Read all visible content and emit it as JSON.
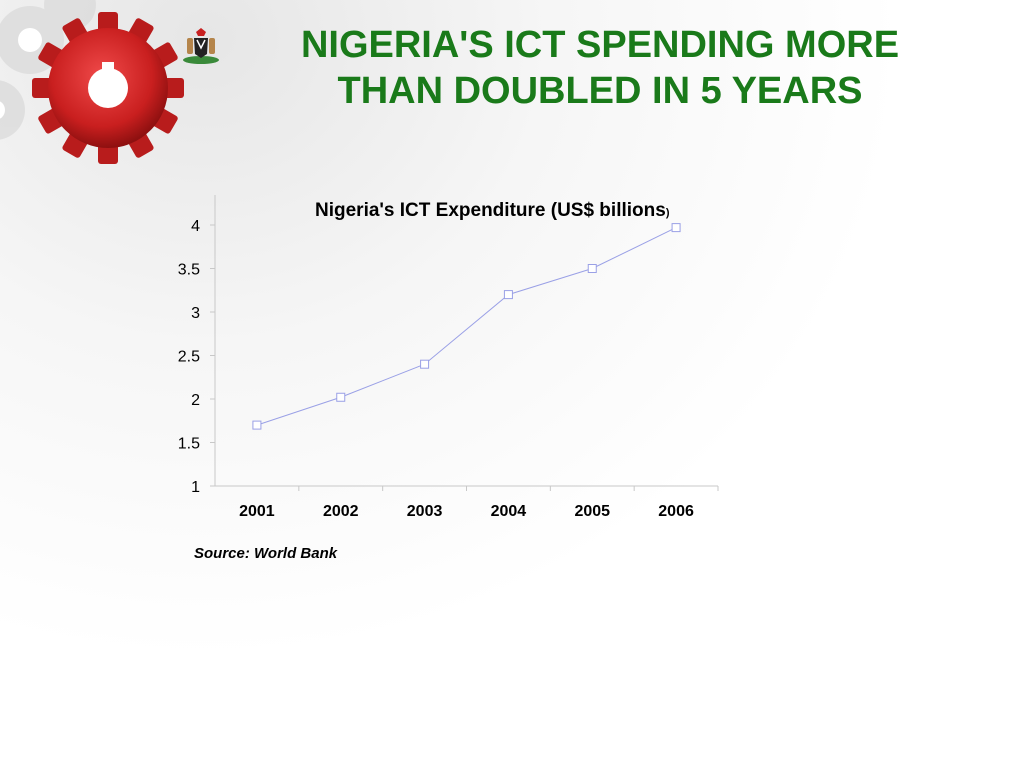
{
  "slide": {
    "title_line1": "NIGERIA'S ICT SPENDING MORE",
    "title_line2": "THAN DOUBLED IN 5 YEARS",
    "source": "Source: World Bank",
    "logo_icon": "gear-icon",
    "emblem_icon": "coat-of-arms-icon",
    "colors": {
      "title": "#1a7a1a",
      "gear": "#d42a2a",
      "line": "#9aa0e6"
    }
  },
  "chart_data": {
    "type": "line",
    "title": "Nigeria's ICT Expenditure (US$  billions",
    "title_suffix": ")",
    "categories": [
      "2001",
      "2002",
      "2003",
      "2004",
      "2005",
      "2006"
    ],
    "series": [
      {
        "values": [
          1.7,
          2.02,
          2.4,
          3.2,
          3.5,
          3.97
        ]
      }
    ],
    "ylim": [
      1,
      4
    ],
    "yticks": [
      "1",
      "1.5",
      "2",
      "2.5",
      "3",
      "3.5",
      "4"
    ],
    "grid": false,
    "legend": "none"
  }
}
